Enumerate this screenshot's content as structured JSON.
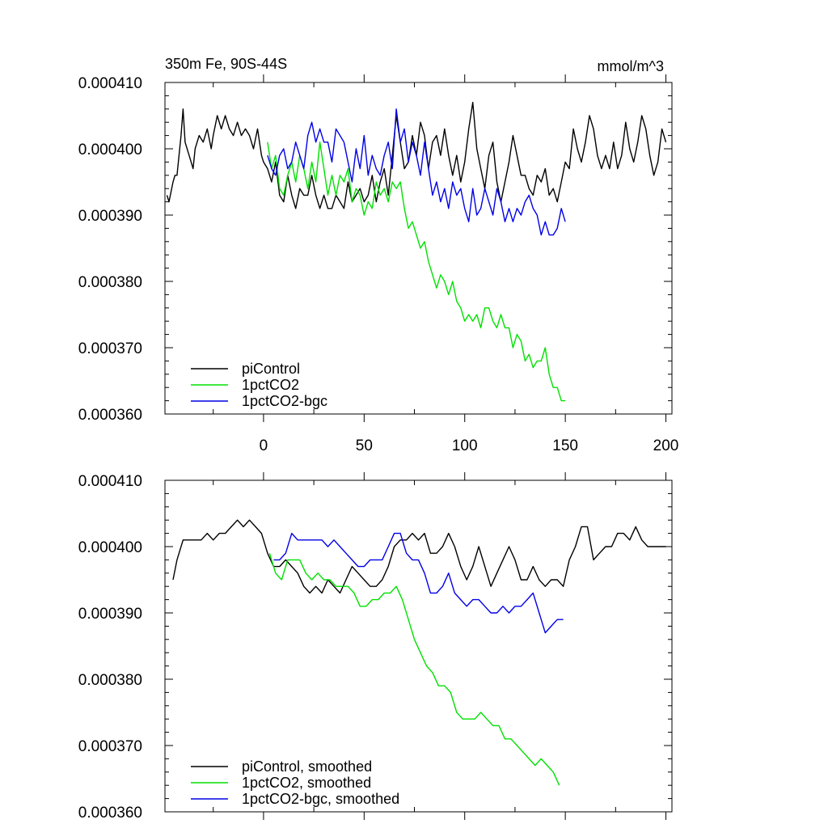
{
  "chart_data": [
    {
      "type": "line",
      "title_left": "350m Fe, 90S-44S",
      "title_right": "mmol/m^3",
      "xlim": [
        -49,
        203
      ],
      "ylim": [
        0.00036,
        0.00041
      ],
      "x_ticks": [
        0,
        50,
        100,
        150,
        200
      ],
      "x_tick_labels": [
        "0",
        "50",
        "100",
        "150",
        "200"
      ],
      "y_ticks": [
        0.00036,
        0.00037,
        0.00038,
        0.00039,
        0.0004,
        0.00041
      ],
      "y_tick_labels": [
        "0.000360",
        "0.000370",
        "0.000380",
        "0.000390",
        "0.000400",
        "0.000410"
      ],
      "legend_position": "bottom-left",
      "series": [
        {
          "name": "piControl",
          "color": "#000000",
          "x": [
            -48,
            -47,
            -45,
            -44,
            -43,
            -41,
            -40,
            -39,
            -37,
            -35,
            -34,
            -32,
            -30,
            -28,
            -26,
            -25,
            -23,
            -21,
            -19,
            -17,
            -15,
            -13,
            -11,
            -9,
            -7,
            -5,
            -3,
            -1,
            0,
            2,
            4,
            6,
            8,
            10,
            12,
            14,
            16,
            18,
            20,
            22,
            24,
            26,
            28,
            30,
            32,
            34,
            36,
            38,
            40,
            42,
            44,
            46,
            48,
            50,
            52,
            54,
            56,
            58,
            60,
            62,
            64,
            66,
            68,
            70,
            72,
            74,
            76,
            78,
            80,
            82,
            84,
            86,
            88,
            90,
            92,
            94,
            96,
            98,
            100,
            102,
            104,
            106,
            108,
            110,
            112,
            114,
            116,
            118,
            120,
            122,
            124,
            126,
            128,
            130,
            132,
            134,
            136,
            138,
            140,
            142,
            144,
            146,
            148,
            150,
            152,
            154,
            156,
            158,
            160,
            162,
            164,
            166,
            168,
            170,
            172,
            174,
            176,
            178,
            180,
            182,
            184,
            186,
            188,
            190,
            192,
            194,
            196,
            198,
            200
          ],
          "y": [
            0.000393,
            0.000392,
            0.000395,
            0.000396,
            0.000396,
            0.000402,
            0.000406,
            0.000401,
            0.000399,
            0.000397,
            0.0004,
            0.000402,
            0.000401,
            0.000403,
            0.0004,
            0.000402,
            0.000405,
            0.000403,
            0.000405,
            0.000403,
            0.000402,
            0.000404,
            0.000402,
            0.000403,
            0.000402,
            0.0004,
            0.000403,
            0.000399,
            0.000398,
            0.000397,
            0.000395,
            0.000398,
            0.000393,
            0.000392,
            0.000396,
            0.000393,
            0.000391,
            0.000394,
            0.000393,
            0.000393,
            0.000396,
            0.000393,
            0.000391,
            0.000393,
            0.000391,
            0.000391,
            0.000393,
            0.000392,
            0.000391,
            0.000395,
            0.000392,
            0.000393,
            0.000394,
            0.000392,
            0.000393,
            0.000396,
            0.000392,
            0.000395,
            0.000397,
            0.000393,
            0.000399,
            0.000405,
            0.000401,
            0.000397,
            0.000398,
            0.000402,
            0.000399,
            0.000404,
            0.000402,
            0.000397,
            0.000401,
            0.000402,
            0.000399,
            0.000403,
            0.000399,
            0.000396,
            0.000399,
            0.000395,
            0.000398,
            0.000403,
            0.000407,
            0.0004,
            0.000397,
            0.000394,
            0.000399,
            0.000401,
            0.000395,
            0.000392,
            0.000395,
            0.000398,
            0.000402,
            0.000399,
            0.000396,
            0.000396,
            0.000394,
            0.000393,
            0.000396,
            0.000395,
            0.000397,
            0.000393,
            0.000394,
            0.000392,
            0.000395,
            0.000398,
            0.000397,
            0.000403,
            0.0004,
            0.000398,
            0.000401,
            0.000405,
            0.000403,
            0.000399,
            0.000397,
            0.000399,
            0.000397,
            0.000401,
            0.000397,
            0.000399,
            0.000404,
            0.0004,
            0.000398,
            0.000401,
            0.000405,
            0.000403,
            0.000399,
            0.000396,
            0.000398,
            0.000403,
            0.000401
          ]
        },
        {
          "name": "1pctCO2",
          "color": "#00e000",
          "x": [
            2,
            4,
            6,
            8,
            10,
            12,
            14,
            16,
            18,
            20,
            22,
            24,
            26,
            28,
            30,
            32,
            34,
            36,
            38,
            40,
            42,
            44,
            46,
            48,
            50,
            52,
            54,
            56,
            58,
            60,
            62,
            64,
            66,
            68,
            70,
            72,
            74,
            76,
            78,
            80,
            82,
            84,
            86,
            88,
            90,
            92,
            94,
            96,
            98,
            100,
            102,
            104,
            106,
            108,
            110,
            112,
            114,
            116,
            118,
            120,
            122,
            124,
            126,
            128,
            130,
            132,
            134,
            136,
            138,
            140,
            142,
            144,
            146,
            148,
            150
          ],
          "y": [
            0.000401,
            0.000397,
            0.000399,
            0.000394,
            0.000393,
            0.000396,
            0.000398,
            0.000395,
            0.000399,
            0.000397,
            0.000394,
            0.000398,
            0.000395,
            0.000401,
            0.000397,
            0.000393,
            0.000396,
            0.000393,
            0.000396,
            0.000395,
            0.000397,
            0.000392,
            0.000394,
            0.000393,
            0.00039,
            0.000392,
            0.000391,
            0.000395,
            0.000393,
            0.000394,
            0.000392,
            0.000395,
            0.000394,
            0.000395,
            0.000391,
            0.000388,
            0.000389,
            0.000387,
            0.000385,
            0.000386,
            0.000383,
            0.000381,
            0.000379,
            0.000381,
            0.00038,
            0.000378,
            0.00038,
            0.000377,
            0.000376,
            0.000374,
            0.000375,
            0.000374,
            0.000375,
            0.000373,
            0.000376,
            0.000376,
            0.000374,
            0.000373,
            0.000375,
            0.000373,
            0.000373,
            0.00037,
            0.000372,
            0.000371,
            0.000368,
            0.000369,
            0.000367,
            0.000368,
            0.000368,
            0.00037,
            0.000366,
            0.000364,
            0.000364,
            0.000362,
            0.000362
          ]
        },
        {
          "name": "1pctCO2-bgc",
          "color": "#0000e6",
          "x": [
            2,
            4,
            6,
            8,
            10,
            12,
            14,
            16,
            18,
            20,
            22,
            24,
            26,
            28,
            30,
            32,
            34,
            36,
            38,
            40,
            42,
            44,
            46,
            48,
            50,
            52,
            54,
            56,
            58,
            60,
            62,
            64,
            66,
            68,
            70,
            72,
            74,
            76,
            78,
            80,
            82,
            84,
            86,
            88,
            90,
            92,
            94,
            96,
            98,
            100,
            102,
            104,
            106,
            108,
            110,
            112,
            114,
            116,
            118,
            120,
            122,
            124,
            126,
            128,
            130,
            132,
            134,
            136,
            138,
            140,
            142,
            144,
            146,
            148,
            150
          ],
          "y": [
            0.000399,
            0.000397,
            0.000396,
            0.000399,
            0.0004,
            0.000397,
            0.000398,
            0.000401,
            0.000399,
            0.000397,
            0.000402,
            0.000404,
            0.000401,
            0.000403,
            0.000401,
            0.000401,
            0.000398,
            0.000403,
            0.000402,
            0.000401,
            0.000398,
            0.000395,
            0.0004,
            0.000397,
            0.000402,
            0.000396,
            0.000399,
            0.000397,
            0.000396,
            0.000399,
            0.000401,
            0.000397,
            0.000406,
            0.000401,
            0.000403,
            0.000398,
            0.000401,
            0.000399,
            0.000396,
            0.000401,
            0.000397,
            0.000393,
            0.000395,
            0.000392,
            0.000394,
            0.000391,
            0.000395,
            0.000393,
            0.000394,
            0.000391,
            0.000389,
            0.000394,
            0.00039,
            0.000391,
            0.000394,
            0.000392,
            0.00039,
            0.000394,
            0.000392,
            0.000389,
            0.000391,
            0.000389,
            0.000391,
            0.00039,
            0.000392,
            0.000393,
            0.000391,
            0.00039,
            0.000387,
            0.000389,
            0.000387,
            0.000387,
            0.000388,
            0.000391,
            0.000389
          ]
        }
      ]
    },
    {
      "type": "line",
      "title_left": "",
      "title_right": "",
      "xlim": [
        -49,
        203
      ],
      "ylim": [
        0.00036,
        0.00041
      ],
      "x_ticks": [
        0,
        50,
        100,
        150,
        200
      ],
      "x_tick_labels": [],
      "y_ticks": [
        0.00036,
        0.00037,
        0.00038,
        0.00039,
        0.0004,
        0.00041
      ],
      "y_tick_labels": [
        "0.000360",
        "0.000370",
        "0.000380",
        "0.000390",
        "0.000400",
        "0.000410"
      ],
      "legend_position": "bottom-left",
      "series": [
        {
          "name": "piControl, smoothed",
          "color": "#000000",
          "x": [
            -45,
            -43,
            -40,
            -37,
            -34,
            -31,
            -28,
            -25,
            -22,
            -19,
            -16,
            -13,
            -10,
            -7,
            -4,
            -1,
            2,
            5,
            8,
            11,
            14,
            17,
            20,
            23,
            26,
            29,
            32,
            35,
            38,
            41,
            44,
            47,
            50,
            53,
            56,
            59,
            62,
            65,
            68,
            71,
            74,
            77,
            80,
            83,
            86,
            89,
            92,
            95,
            98,
            101,
            104,
            107,
            110,
            113,
            116,
            119,
            122,
            125,
            128,
            131,
            134,
            137,
            140,
            143,
            146,
            149,
            152,
            155,
            158,
            161,
            164,
            167,
            170,
            173,
            176,
            179,
            182,
            185,
            188,
            191,
            194,
            197,
            200
          ],
          "y": [
            0.000395,
            0.000398,
            0.000401,
            0.000401,
            0.000401,
            0.000401,
            0.000402,
            0.000401,
            0.000402,
            0.000402,
            0.000403,
            0.000404,
            0.000403,
            0.000404,
            0.000403,
            0.000402,
            0.000399,
            0.000397,
            0.000397,
            0.000398,
            0.000397,
            0.000396,
            0.000394,
            0.000393,
            0.000394,
            0.000393,
            0.000395,
            0.000394,
            0.000393,
            0.000395,
            0.000397,
            0.000396,
            0.000395,
            0.000394,
            0.000394,
            0.000395,
            0.000397,
            0.0004,
            0.000401,
            0.000401,
            0.000402,
            0.000401,
            0.000402,
            0.000399,
            0.000399,
            0.0004,
            0.000402,
            0.0004,
            0.000397,
            0.000395,
            0.000397,
            0.0004,
            0.000397,
            0.000394,
            0.000396,
            0.000398,
            0.0004,
            0.000398,
            0.000395,
            0.000395,
            0.000397,
            0.000395,
            0.000394,
            0.000395,
            0.000395,
            0.000394,
            0.000398,
            0.0004,
            0.000403,
            0.000403,
            0.000398,
            0.000399,
            0.0004,
            0.0004,
            0.000402,
            0.000402,
            0.000401,
            0.000403,
            0.000401,
            0.0004,
            0.0004,
            0.0004,
            0.0004
          ]
        },
        {
          "name": "1pctCO2, smoothed",
          "color": "#00e000",
          "x": [
            3,
            6,
            9,
            12,
            15,
            18,
            21,
            24,
            27,
            30,
            33,
            36,
            39,
            42,
            45,
            48,
            51,
            54,
            57,
            60,
            63,
            66,
            69,
            72,
            75,
            78,
            81,
            84,
            87,
            90,
            93,
            96,
            99,
            102,
            105,
            108,
            111,
            114,
            117,
            120,
            123,
            126,
            129,
            132,
            135,
            138,
            141,
            144,
            147
          ],
          "y": [
            0.000399,
            0.000396,
            0.000395,
            0.000398,
            0.000398,
            0.000398,
            0.000396,
            0.000395,
            0.000396,
            0.000395,
            0.000395,
            0.000394,
            0.000394,
            0.000394,
            0.000393,
            0.000391,
            0.000391,
            0.000392,
            0.000392,
            0.000393,
            0.000393,
            0.000394,
            0.000392,
            0.000389,
            0.000386,
            0.000384,
            0.000382,
            0.000381,
            0.000379,
            0.000379,
            0.000378,
            0.000375,
            0.000374,
            0.000374,
            0.000374,
            0.000375,
            0.000374,
            0.000373,
            0.000373,
            0.000371,
            0.000371,
            0.00037,
            0.000369,
            0.000368,
            0.000367,
            0.000368,
            0.000367,
            0.000366,
            0.000364
          ]
        },
        {
          "name": "1pctCO2-bgc, smoothed",
          "color": "#0000e6",
          "x": [
            5,
            8,
            11,
            14,
            17,
            20,
            23,
            26,
            29,
            32,
            35,
            38,
            41,
            44,
            47,
            50,
            53,
            56,
            59,
            62,
            65,
            68,
            71,
            74,
            77,
            80,
            83,
            86,
            89,
            92,
            95,
            98,
            101,
            104,
            107,
            110,
            113,
            116,
            119,
            122,
            125,
            128,
            131,
            134,
            137,
            140,
            143,
            146,
            149
          ],
          "y": [
            0.000398,
            0.000398,
            0.000399,
            0.000402,
            0.000401,
            0.000401,
            0.000401,
            0.000401,
            0.000401,
            0.0004,
            0.000401,
            0.0004,
            0.000399,
            0.000398,
            0.000397,
            0.000397,
            0.000398,
            0.000398,
            0.000398,
            0.0004,
            0.000402,
            0.000402,
            0.000399,
            0.000398,
            0.000398,
            0.000396,
            0.000393,
            0.000393,
            0.000394,
            0.000396,
            0.000393,
            0.000392,
            0.000391,
            0.000392,
            0.000392,
            0.000391,
            0.00039,
            0.00039,
            0.000391,
            0.00039,
            0.000391,
            0.000391,
            0.000392,
            0.000393,
            0.00039,
            0.000387,
            0.000388,
            0.000389,
            0.000389
          ]
        }
      ]
    }
  ]
}
